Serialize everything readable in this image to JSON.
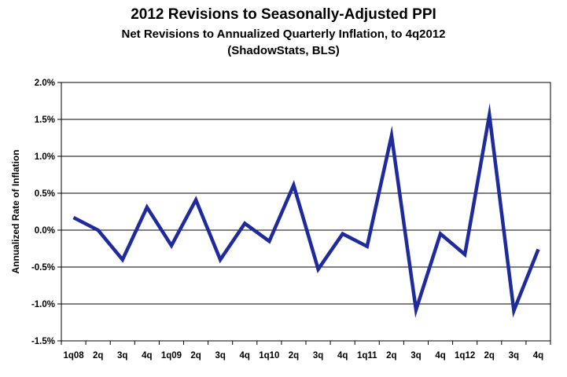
{
  "chart_data": {
    "type": "line",
    "title": "2012 Revisions to Seasonally-Adjusted PPI",
    "subtitle": "Net Revisions to Annualized Quarterly Inflation, to 4q2012",
    "source": "(ShadowStats, BLS)",
    "xlabel": "",
    "ylabel": "Annualized Rate of Inflation",
    "ylim": [
      -1.5,
      2.0
    ],
    "ytick_values": [
      2.0,
      1.5,
      1.0,
      0.5,
      0.0,
      -0.5,
      -1.0,
      -1.5
    ],
    "ytick_labels": [
      "2.0%",
      "1.5%",
      "1.0%",
      "0.5%",
      "0.0%",
      "-0.5%",
      "-1.0%",
      "-1.5%"
    ],
    "grid": true,
    "categories": [
      "1q08",
      "2q",
      "3q",
      "4q",
      "1q09",
      "2q",
      "3q",
      "4q",
      "1q10",
      "2q",
      "3q",
      "4q",
      "1q11",
      "2q",
      "3q",
      "4q",
      "1q12",
      "2q",
      "3q",
      "4q"
    ],
    "series": [
      {
        "name": "Net Revisions",
        "color": "#1f2a9c",
        "values": [
          0.17,
          0.0,
          -0.4,
          0.31,
          -0.21,
          0.41,
          -0.4,
          0.09,
          -0.15,
          0.61,
          -0.53,
          -0.05,
          -0.22,
          1.28,
          -1.08,
          -0.05,
          -0.33,
          1.56,
          -1.09,
          -0.26
        ]
      }
    ]
  }
}
